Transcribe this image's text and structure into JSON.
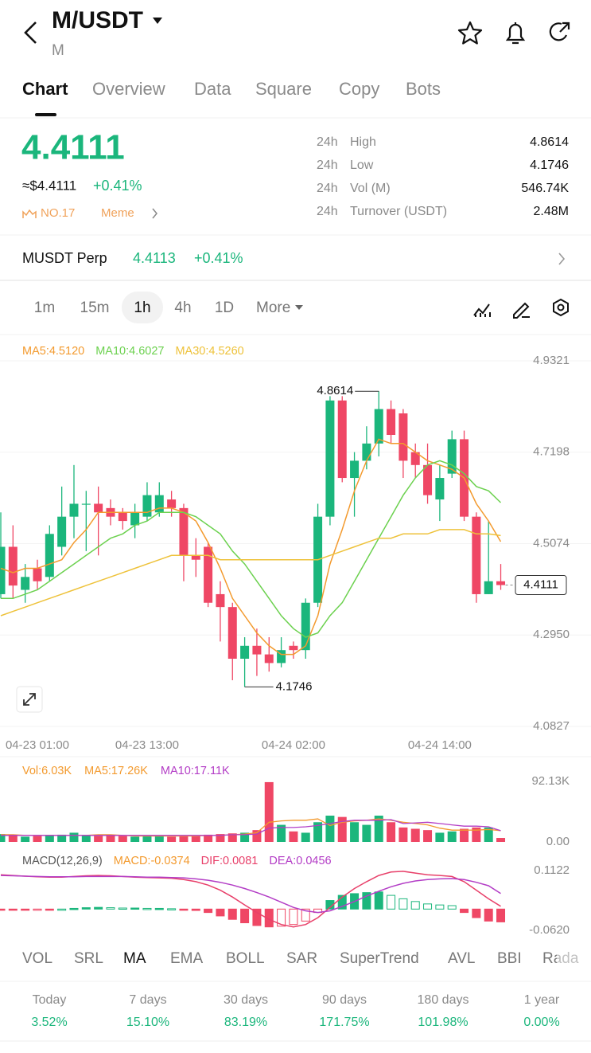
{
  "header": {
    "symbol": "M/USDT",
    "base": "M"
  },
  "tabs": [
    "Chart",
    "Overview",
    "Data",
    "Square",
    "Copy",
    "Bots"
  ],
  "ticker": {
    "price": "4.4111",
    "usd": "≈$4.4111",
    "change": "+0.41%",
    "rank": "NO.17",
    "tag": "Meme",
    "stats": [
      {
        "period": "24h",
        "label": "High",
        "value": "4.8614"
      },
      {
        "period": "24h",
        "label": "Low",
        "value": "4.1746"
      },
      {
        "period": "24h",
        "label": "Vol (M)",
        "value": "546.74K"
      },
      {
        "period": "24h",
        "label": "Turnover (USDT)",
        "value": "2.48M"
      }
    ]
  },
  "perp": {
    "name": "MUSDT Perp",
    "price": "4.4113",
    "change": "+0.41%"
  },
  "timeframes": [
    "1m",
    "15m",
    "1h",
    "4h",
    "1D",
    "More"
  ],
  "chart": {
    "type": "candlestick",
    "ylim": [
      4.0827,
      4.9321
    ],
    "yticks": [
      4.9321,
      4.7198,
      4.5074,
      {
        "value": 4.295,
        "label": "4.2950"
      },
      4.0827
    ],
    "last_price": 4.4111,
    "x_labels": [
      {
        "index": 3,
        "label": "04-23 01:00"
      },
      {
        "index": 12,
        "label": "04-23 13:00"
      },
      {
        "index": 24,
        "label": "04-24 02:00"
      },
      {
        "index": 36,
        "label": "04-24 14:00"
      }
    ],
    "candles": {
      "open": [
        4.39,
        4.5,
        4.4,
        4.45,
        4.43,
        4.5,
        4.57,
        4.6,
        4.6,
        4.59,
        4.58,
        4.55,
        4.57,
        4.58,
        4.61,
        4.59,
        4.48,
        4.5,
        4.39,
        4.36,
        4.24,
        4.27,
        4.25,
        4.23,
        4.27,
        4.26,
        4.37,
        4.57,
        4.84,
        4.66,
        4.7,
        4.74,
        4.82,
        4.81,
        4.72,
        4.69,
        4.61,
        4.67,
        4.75,
        4.57,
        4.39,
        4.42
      ],
      "high": [
        4.58,
        4.55,
        4.46,
        4.47,
        4.55,
        4.64,
        4.69,
        4.63,
        4.64,
        4.61,
        4.59,
        4.6,
        4.65,
        4.65,
        4.63,
        4.6,
        4.52,
        4.51,
        4.42,
        4.37,
        4.29,
        4.31,
        4.29,
        4.29,
        4.28,
        4.38,
        4.6,
        4.85,
        4.85,
        4.72,
        4.78,
        4.8614,
        4.84,
        4.82,
        4.74,
        4.74,
        4.69,
        4.77,
        4.77,
        4.58,
        4.56,
        4.46
      ],
      "low": [
        4.38,
        4.38,
        4.37,
        4.4,
        4.42,
        4.48,
        4.52,
        4.49,
        4.48,
        4.55,
        4.54,
        4.52,
        4.56,
        4.57,
        4.57,
        4.42,
        4.43,
        4.36,
        4.28,
        4.19,
        4.1746,
        4.2,
        4.21,
        4.22,
        4.24,
        4.24,
        4.36,
        4.55,
        4.65,
        4.57,
        4.68,
        4.71,
        4.74,
        4.66,
        4.66,
        4.6,
        4.56,
        4.66,
        4.56,
        4.37,
        4.39,
        4.4
      ],
      "close": [
        4.5,
        4.41,
        4.43,
        4.42,
        4.53,
        4.57,
        4.6,
        4.6,
        4.58,
        4.57,
        4.56,
        4.58,
        4.62,
        4.62,
        4.59,
        4.48,
        4.47,
        4.37,
        4.36,
        4.24,
        4.27,
        4.25,
        4.23,
        4.26,
        4.26,
        4.37,
        4.57,
        4.84,
        4.66,
        4.7,
        4.74,
        4.82,
        4.76,
        4.7,
        4.69,
        4.62,
        4.66,
        4.75,
        4.57,
        4.39,
        4.42,
        4.4111
      ]
    },
    "ma": [
      {
        "name": "MA5:4.5120",
        "color": "#f39a2e",
        "values": [
          4.45,
          4.44,
          4.45,
          4.45,
          4.46,
          4.47,
          4.51,
          4.54,
          4.58,
          4.58,
          4.58,
          4.58,
          4.58,
          4.59,
          4.59,
          4.58,
          4.56,
          4.51,
          4.45,
          4.38,
          4.34,
          4.3,
          4.27,
          4.25,
          4.25,
          4.27,
          4.34,
          4.46,
          4.54,
          4.63,
          4.7,
          4.75,
          4.74,
          4.74,
          4.72,
          4.7,
          4.69,
          4.68,
          4.66,
          4.6,
          4.56,
          4.512
        ]
      },
      {
        "name": "MA10:4.6027",
        "color": "#6cd14f",
        "values": [
          4.38,
          4.38,
          4.39,
          4.4,
          4.42,
          4.44,
          4.46,
          4.48,
          4.5,
          4.52,
          4.53,
          4.55,
          4.56,
          4.58,
          4.58,
          4.58,
          4.57,
          4.55,
          4.53,
          4.49,
          4.46,
          4.42,
          4.38,
          4.34,
          4.31,
          4.29,
          4.3,
          4.34,
          4.37,
          4.42,
          4.47,
          4.52,
          4.57,
          4.62,
          4.66,
          4.69,
          4.7,
          4.69,
          4.67,
          4.64,
          4.63,
          4.6027
        ]
      },
      {
        "name": "MA30:4.5260",
        "color": "#eec23a",
        "values": [
          4.34,
          4.35,
          4.36,
          4.37,
          4.38,
          4.39,
          4.4,
          4.41,
          4.42,
          4.43,
          4.44,
          4.45,
          4.46,
          4.47,
          4.48,
          4.48,
          4.48,
          4.48,
          4.47,
          4.47,
          4.47,
          4.47,
          4.47,
          4.47,
          4.47,
          4.47,
          4.47,
          4.48,
          4.49,
          4.5,
          4.51,
          4.52,
          4.52,
          4.53,
          4.53,
          4.53,
          4.54,
          4.54,
          4.54,
          4.53,
          4.53,
          4.526
        ]
      }
    ],
    "volume": {
      "legend": [
        {
          "name": "Vol:6.03K",
          "color": "#f39a2e"
        },
        {
          "name": "MA5:17.26K",
          "color": "#f39a2e"
        },
        {
          "name": "MA10:17.11K",
          "color": "#b33dc6"
        }
      ],
      "ylim": [
        0,
        92130
      ],
      "yticks": [
        {
          "value": 92130,
          "label": "92.13K"
        },
        {
          "value": 0,
          "label": "0.00"
        }
      ],
      "values": [
        12000,
        10000,
        8000,
        9000,
        10000,
        11000,
        14000,
        10000,
        9000,
        10000,
        9000,
        8000,
        10000,
        9000,
        8000,
        10000,
        9000,
        11000,
        12000,
        13000,
        14000,
        18000,
        91000,
        26000,
        16000,
        14000,
        30000,
        40000,
        38000,
        30000,
        26000,
        40000,
        30000,
        22000,
        20000,
        18000,
        14000,
        16000,
        20000,
        22000,
        22000,
        6030
      ],
      "ma5": [
        11000,
        11000,
        10000,
        10000,
        10000,
        10000,
        10000,
        10000,
        11000,
        11000,
        10000,
        9000,
        9000,
        9000,
        9000,
        9000,
        9000,
        10000,
        10000,
        11000,
        12000,
        14000,
        30000,
        32000,
        33000,
        33000,
        35000,
        25000,
        30000,
        32000,
        33000,
        35000,
        33000,
        30000,
        28000,
        26000,
        21000,
        18000,
        18000,
        18000,
        19000,
        17260
      ],
      "ma10": [
        10000,
        10000,
        10000,
        10000,
        10000,
        10000,
        10000,
        10000,
        10000,
        10000,
        10000,
        10000,
        10000,
        10000,
        10000,
        10000,
        10000,
        10000,
        10000,
        11000,
        11000,
        12000,
        21000,
        22000,
        22000,
        23000,
        25000,
        28000,
        31000,
        33000,
        33000,
        33000,
        34000,
        28000,
        29000,
        30000,
        28000,
        26000,
        24000,
        24000,
        23000,
        17110
      ]
    },
    "macd": {
      "legend": [
        {
          "name": "MACD(12,26,9)",
          "color": "#555555"
        },
        {
          "name": "MACD:-0.0374",
          "color": "#f39a2e"
        },
        {
          "name": "DIF:0.0081",
          "color": "#e8406a"
        },
        {
          "name": "DEA:0.0456",
          "color": "#b33dc6"
        }
      ],
      "ylim": [
        -0.062,
        0.1122
      ],
      "yticks": [
        0.1122,
        {
          "value": -0.062,
          "label": "-0.0620"
        }
      ],
      "hist": [
        -0.003,
        -0.003,
        -0.003,
        -0.002,
        -0.002,
        0.0,
        0.002,
        0.004,
        0.005,
        0.004,
        0.003,
        0.003,
        0.002,
        0.002,
        0.001,
        -0.002,
        -0.004,
        -0.01,
        -0.02,
        -0.03,
        -0.04,
        -0.048,
        -0.052,
        -0.05,
        -0.045,
        -0.035,
        -0.01,
        0.025,
        0.04,
        0.045,
        0.048,
        0.05,
        0.04,
        0.03,
        0.022,
        0.015,
        0.012,
        0.01,
        -0.01,
        -0.025,
        -0.035,
        -0.0374
      ],
      "dif": [
        0.1,
        0.098,
        0.096,
        0.094,
        0.093,
        0.093,
        0.095,
        0.097,
        0.098,
        0.097,
        0.095,
        0.093,
        0.092,
        0.091,
        0.09,
        0.086,
        0.08,
        0.07,
        0.055,
        0.035,
        0.012,
        -0.01,
        -0.03,
        -0.045,
        -0.052,
        -0.045,
        -0.025,
        0.005,
        0.035,
        0.06,
        0.08,
        0.098,
        0.108,
        0.11,
        0.105,
        0.1,
        0.098,
        0.095,
        0.08,
        0.055,
        0.03,
        0.0081
      ],
      "dea": [
        0.098,
        0.097,
        0.096,
        0.095,
        0.094,
        0.094,
        0.094,
        0.095,
        0.095,
        0.095,
        0.095,
        0.094,
        0.093,
        0.093,
        0.092,
        0.091,
        0.088,
        0.084,
        0.078,
        0.07,
        0.06,
        0.048,
        0.035,
        0.02,
        0.005,
        -0.005,
        -0.01,
        -0.005,
        0.008,
        0.022,
        0.038,
        0.052,
        0.065,
        0.075,
        0.082,
        0.086,
        0.088,
        0.089,
        0.086,
        0.078,
        0.068,
        0.0456
      ]
    }
  },
  "indicators": [
    "VOL",
    "SRL",
    "MA",
    "EMA",
    "BOLL",
    "SAR",
    "SuperTrend",
    "AVL",
    "BBI",
    "Rada"
  ],
  "performance": [
    {
      "period": "Today",
      "value": "3.52%"
    },
    {
      "period": "7 days",
      "value": "15.10%"
    },
    {
      "period": "30 days",
      "value": "83.19%"
    },
    {
      "period": "90 days",
      "value": "171.75%"
    },
    {
      "period": "180 days",
      "value": "101.98%"
    },
    {
      "period": "1 year",
      "value": "0.00%"
    }
  ]
}
